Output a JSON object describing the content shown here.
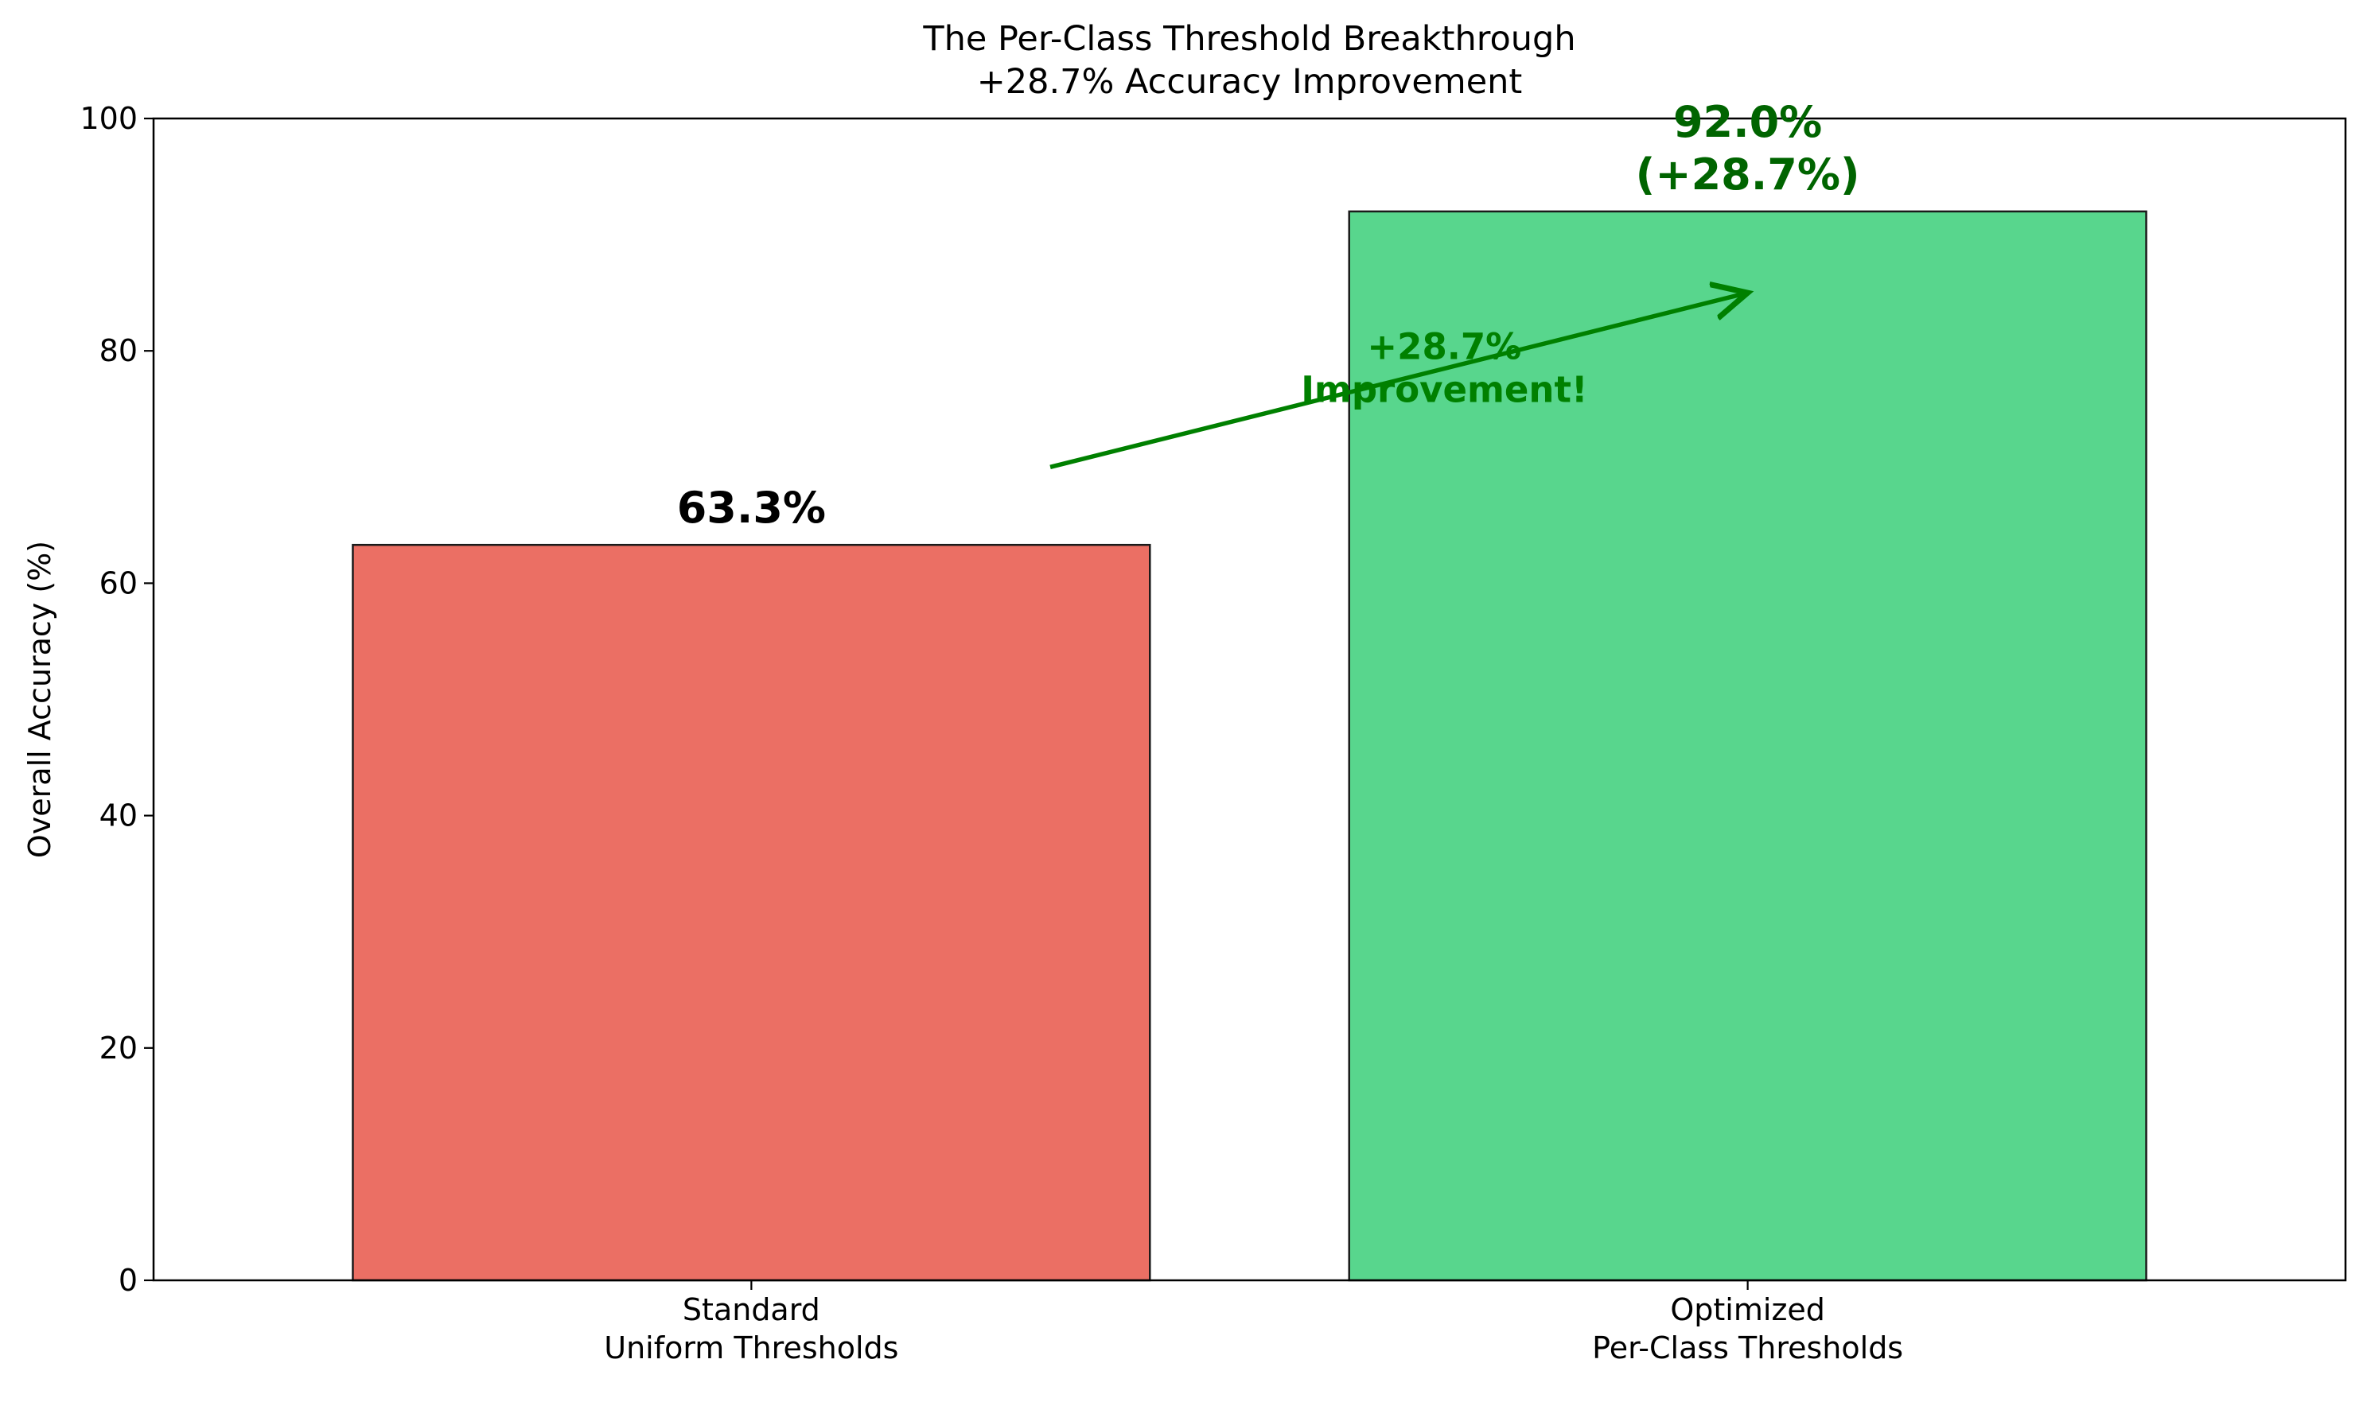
{
  "chart_data": {
    "type": "bar",
    "title": [
      "The Per-Class Threshold Breakthrough",
      "+28.7% Accuracy Improvement"
    ],
    "xlabel": "",
    "ylabel": "Overall Accuracy (%)",
    "ylim": [
      0,
      100
    ],
    "yticks": [
      0,
      20,
      40,
      60,
      80,
      100
    ],
    "grid": false,
    "categories": [
      [
        "Standard",
        "Uniform Thresholds"
      ],
      [
        "Optimized",
        "Per-Class Thresholds"
      ]
    ],
    "values": [
      63.3,
      92.0
    ],
    "bar_colors": [
      "#eb6f64",
      "#58d68d"
    ],
    "bar_edge_color": "#1a1a1a",
    "data_labels": [
      {
        "lines": [
          "63.3%"
        ],
        "color": "#000000"
      },
      {
        "lines": [
          "92.0%",
          "(+28.7%)"
        ],
        "color": "#006400"
      }
    ],
    "annotation": {
      "lines": [
        "+28.7%",
        "Improvement!"
      ],
      "color": "#008000",
      "arrow_from": [
        0.3,
        70
      ],
      "arrow_to": [
        1.0,
        85
      ]
    }
  }
}
